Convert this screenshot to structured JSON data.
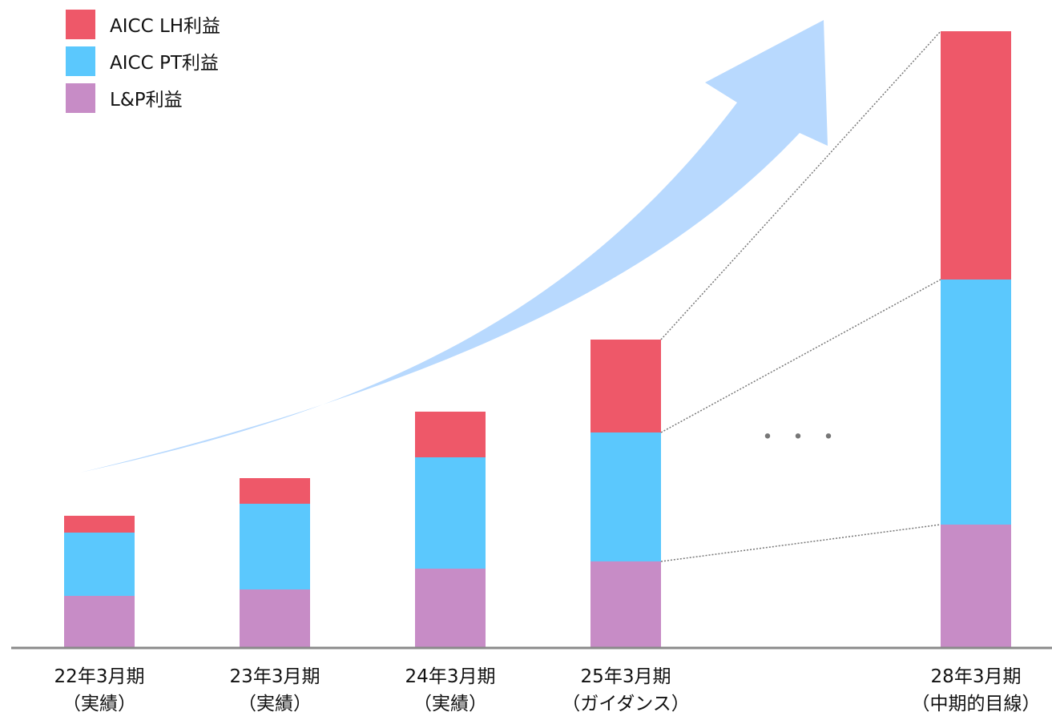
{
  "chart_data": {
    "type": "bar",
    "stacked": true,
    "y_axis_shown": false,
    "grid": false,
    "legend_position": "top-left",
    "categories": [
      [
        "22年3月期",
        "（実績）"
      ],
      [
        "23年3月期",
        "（実績）"
      ],
      [
        "24年3月期",
        "（実績）"
      ],
      [
        "25年3月期",
        "（ガイダンス）"
      ],
      [
        "28年3月期",
        "（中期的目線）"
      ]
    ],
    "series": [
      {
        "name": "L&P利益",
        "color": "#C78CC6",
        "values": [
          65,
          73,
          99,
          108,
          154
        ]
      },
      {
        "name": "AICC PT利益",
        "color": "#5BC8FD",
        "values": [
          79,
          107,
          139,
          161,
          306
        ]
      },
      {
        "name": "AICC LH利益",
        "color": "#EE5869",
        "values": [
          21,
          32,
          57,
          116,
          310
        ]
      }
    ],
    "legend_order": [
      "AICC LH利益",
      "AICC PT利益",
      "L&P利益"
    ],
    "annotations": {
      "ellipsis": "・・・",
      "growth_arrow_color": "#B8D9FE",
      "connector_line_color": "#777777"
    },
    "ylim": [
      0,
      770
    ]
  }
}
